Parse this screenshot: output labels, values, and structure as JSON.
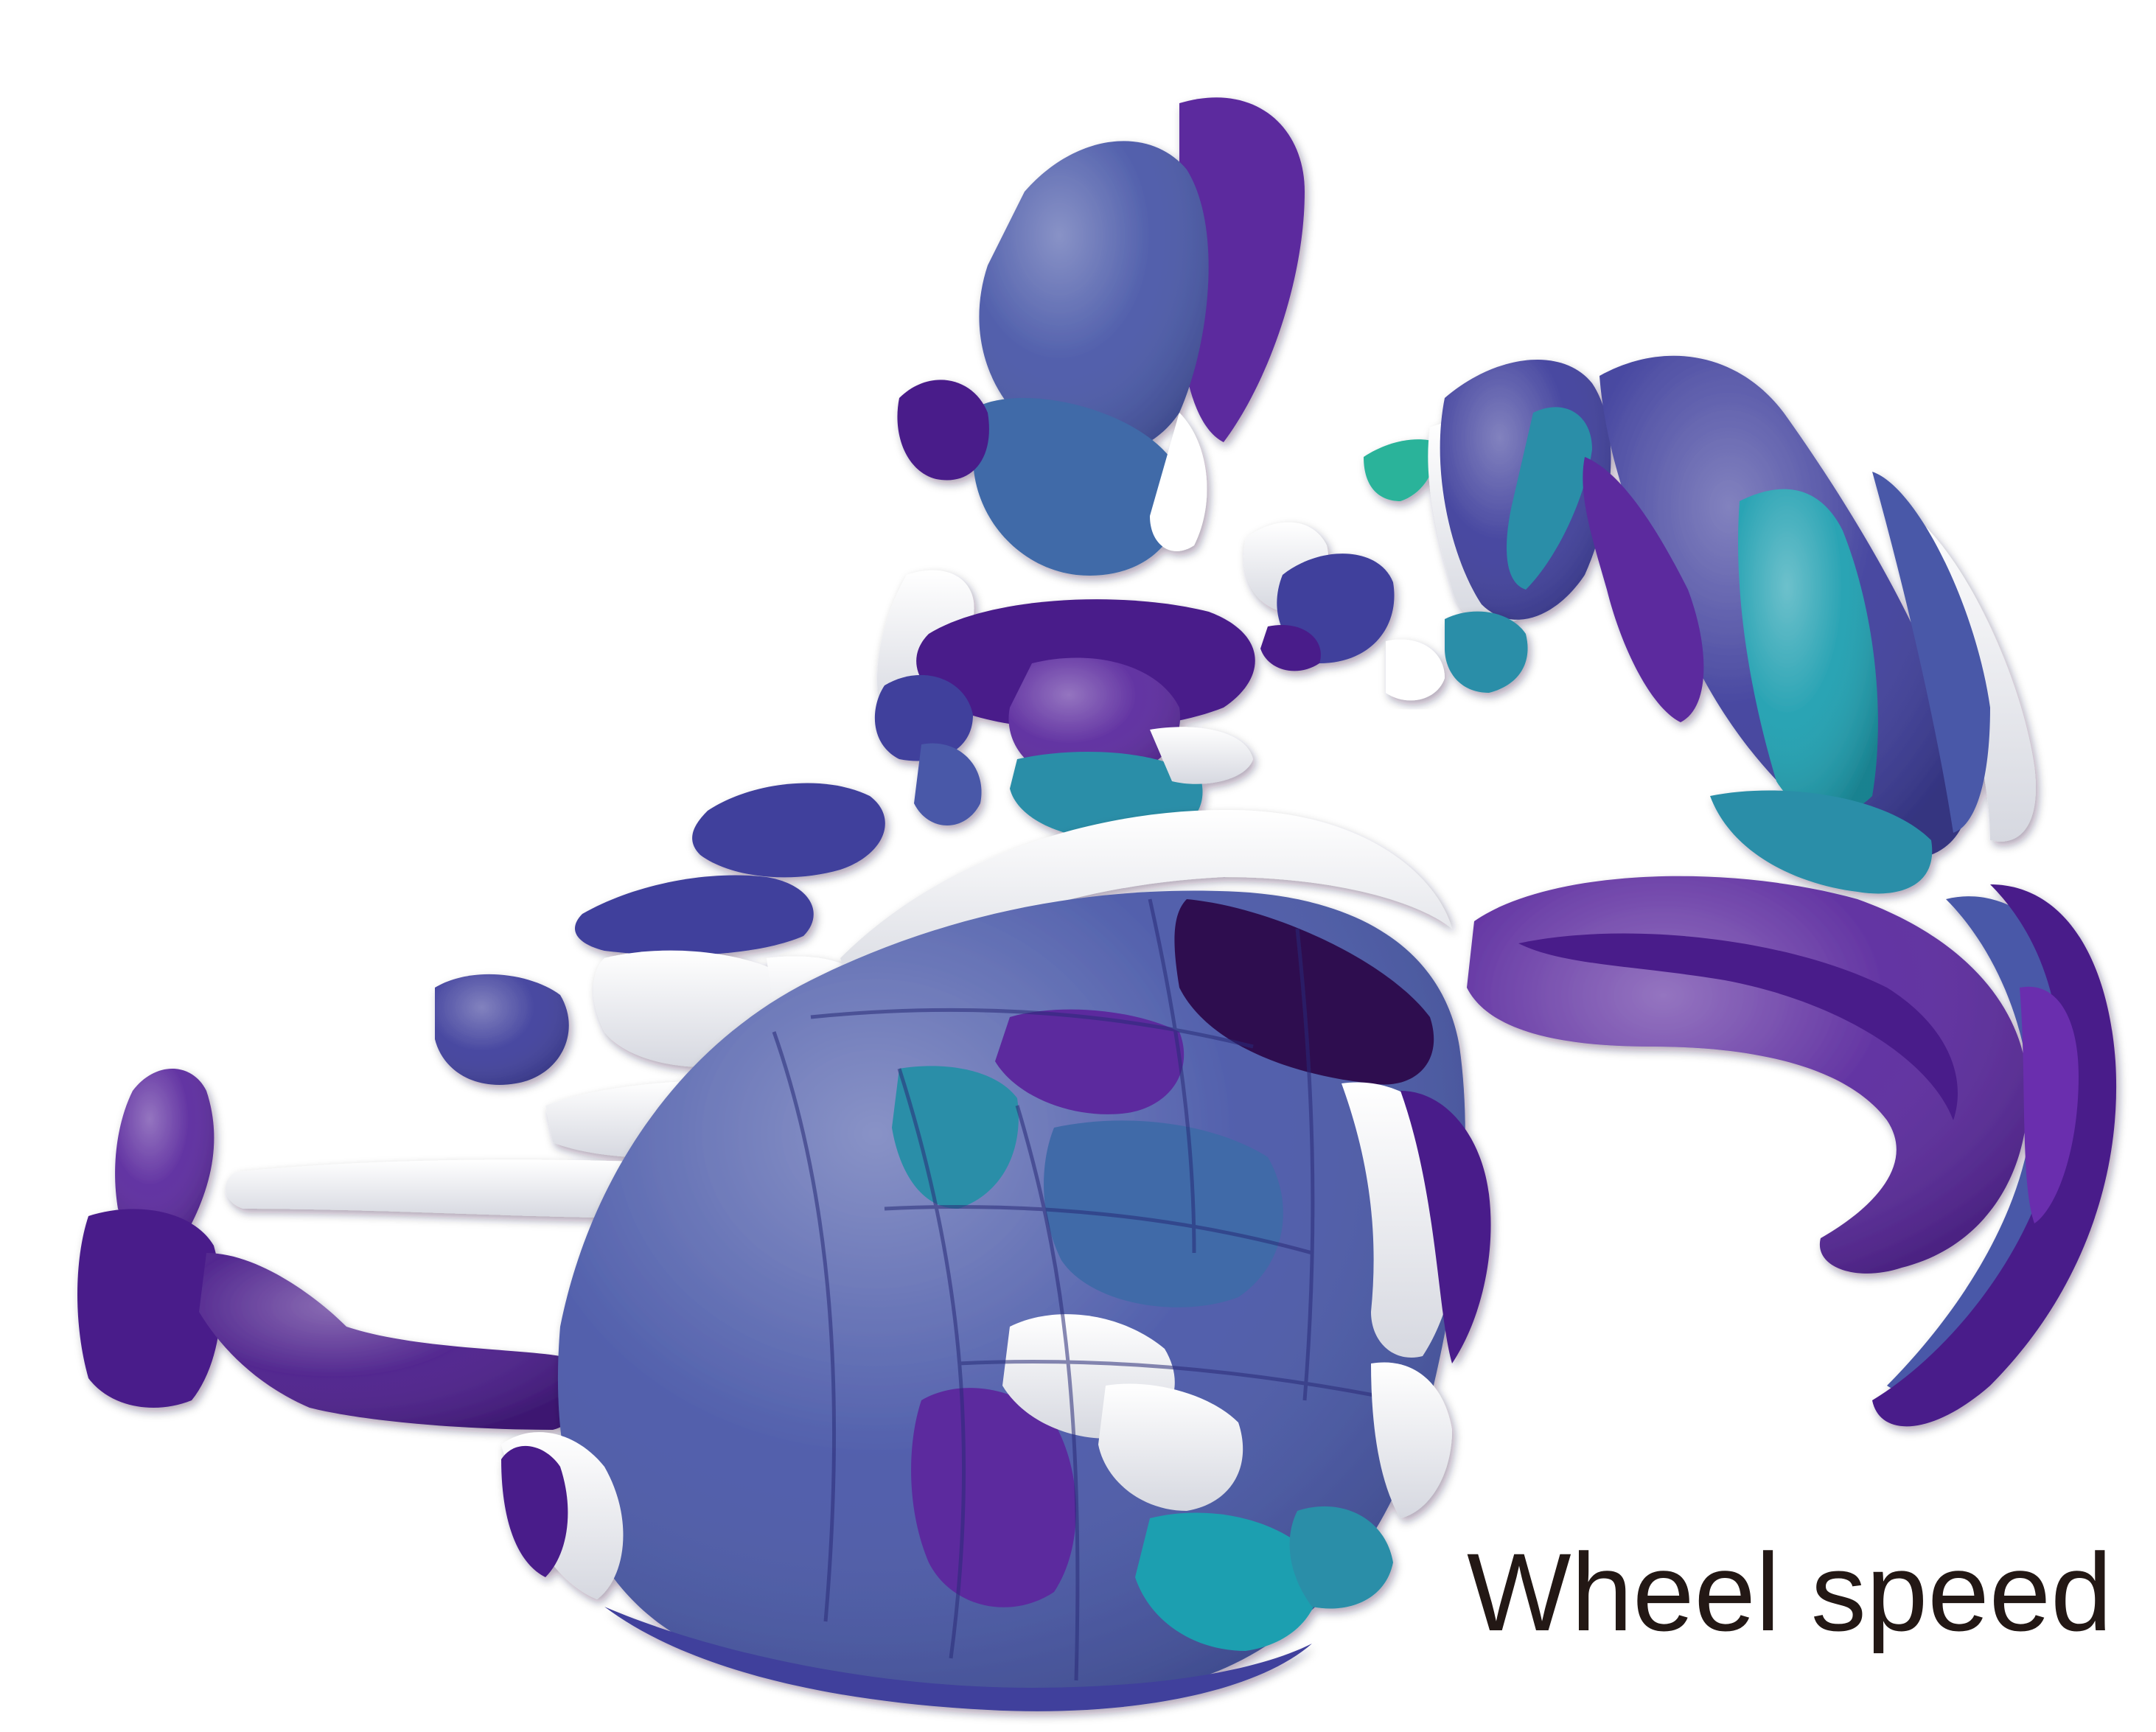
{
  "caption": "Wheel speed",
  "palette": {
    "deep_purple": "#4a1d8a",
    "violet": "#5b2a9e",
    "indigo": "#3f3f9c",
    "royal_blue": "#4958a8",
    "steel_blue": "#3f6aa8",
    "teal": "#2a8ea8",
    "aqua": "#1f9fb0",
    "green_teal": "#2bb39a",
    "dark_plum": "#2e1150",
    "white_part": "#ffffff",
    "white_shadow": "#d9dbe2",
    "background": "#ffffff",
    "text": "#231815"
  }
}
